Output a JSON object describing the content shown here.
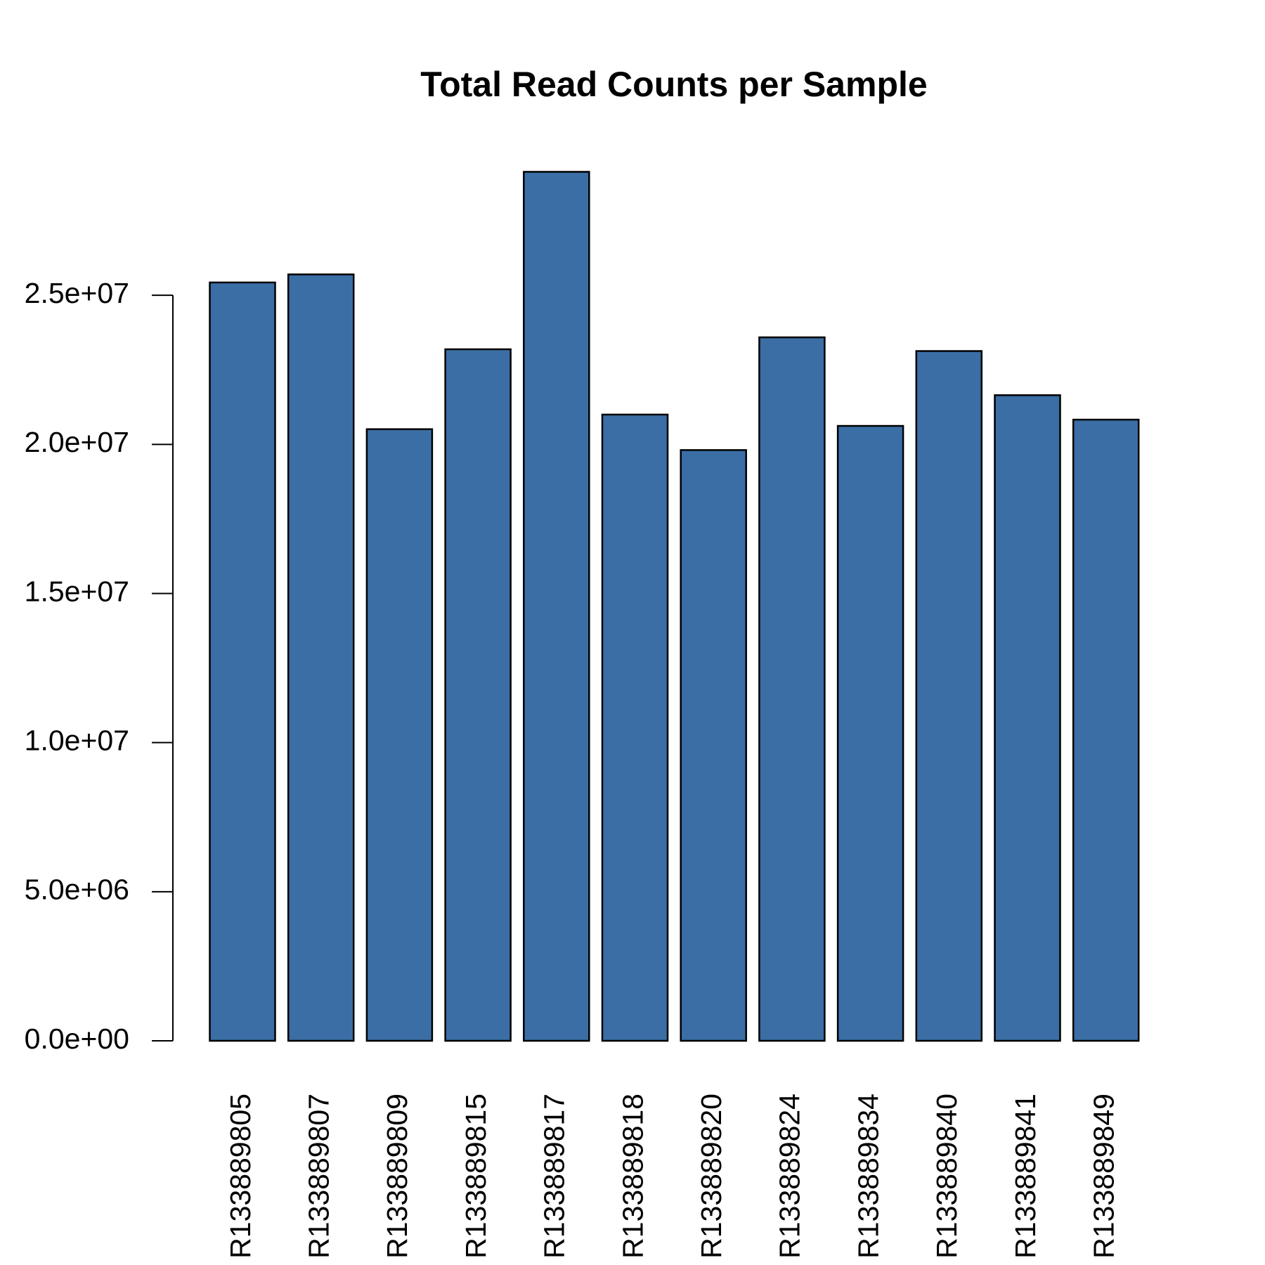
{
  "chart_data": {
    "type": "bar",
    "title": "Total Read Counts per Sample",
    "categories": [
      "R133889805",
      "R133889807",
      "R133889809",
      "R133889815",
      "R133889817",
      "R133889818",
      "R133889820",
      "R133889824",
      "R133889834",
      "R133889840",
      "R133889841",
      "R133889849"
    ],
    "values": [
      25430000,
      25700000,
      20510000,
      23190000,
      29140000,
      21000000,
      19810000,
      23590000,
      20620000,
      23130000,
      21650000,
      20830000
    ],
    "color": "#3a6ea5",
    "ylim": [
      0,
      30000000
    ],
    "yticks": [
      {
        "value": 0,
        "label": "0.0e+00"
      },
      {
        "value": 5000000,
        "label": "5.0e+06"
      },
      {
        "value": 10000000,
        "label": "1.0e+07"
      },
      {
        "value": 15000000,
        "label": "1.5e+07"
      },
      {
        "value": 20000000,
        "label": "2.0e+07"
      },
      {
        "value": 25000000,
        "label": "2.5e+07"
      }
    ],
    "grid": false
  }
}
